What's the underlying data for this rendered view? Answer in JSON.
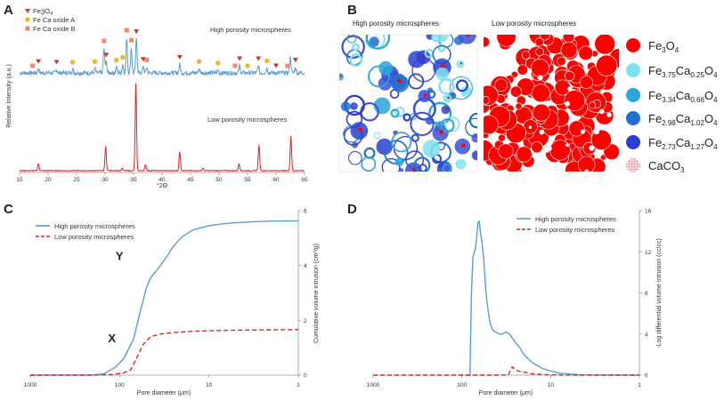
{
  "panels": {
    "A": "A",
    "B": "B",
    "C": "C",
    "D": "D"
  },
  "chart_data": [
    {
      "id": "A",
      "type": "line",
      "title": "",
      "xlabel": "°2Θ",
      "ylabel": "Relative Intensity (a.u.)",
      "xlim": [
        15,
        65
      ],
      "xticks": [
        15,
        20,
        25,
        30,
        35,
        40,
        45,
        50,
        55,
        60,
        65
      ],
      "legend": [
        {
          "name": "Fe3O4",
          "text": "Fe",
          "s1": "3",
          "mid": "O",
          "s2": "4",
          "marker": "triangle",
          "color": "#c0392b"
        },
        {
          "name": "Fe Ca oxide A",
          "text": "Fe Ca oxide A",
          "marker": "circle",
          "color": "#f0b429"
        },
        {
          "name": "Fe Ca oxide B",
          "text": "Fe Ca oxide B",
          "marker": "square",
          "color": "#f08a6c"
        }
      ],
      "series": [
        {
          "name": "High porosity microspheres",
          "color": "#5b9bd5",
          "baseline": 0.22,
          "peaks": [
            [
              18.3,
              0.06
            ],
            [
              21.5,
              0.05
            ],
            [
              24.3,
              0.05
            ],
            [
              28.2,
              0.06
            ],
            [
              29.8,
              0.35
            ],
            [
              30.2,
              0.15
            ],
            [
              32.0,
              0.08
            ],
            [
              33.1,
              0.12
            ],
            [
              33.8,
              0.5
            ],
            [
              34.6,
              0.36
            ],
            [
              35.5,
              0.48
            ],
            [
              36.7,
              0.09
            ],
            [
              37.3,
              0.08
            ],
            [
              43.1,
              0.12
            ],
            [
              46.5,
              0.06
            ],
            [
              49.8,
              0.04
            ],
            [
              53.6,
              0.1
            ],
            [
              56.9,
              0.1
            ],
            [
              58.4,
              0.07
            ],
            [
              62.5,
              0.22
            ],
            [
              63.4,
              0.08
            ]
          ]
        },
        {
          "name": "Low porosity microspheres",
          "color": "#e02020",
          "baseline": 0.0,
          "peaks": [
            [
              18.3,
              0.08
            ],
            [
              30.1,
              0.28
            ],
            [
              33.0,
              0.03
            ],
            [
              35.4,
              1.0
            ],
            [
              37.1,
              0.07
            ],
            [
              43.1,
              0.22
            ],
            [
              47.2,
              0.03
            ],
            [
              53.5,
              0.08
            ],
            [
              57.0,
              0.3
            ],
            [
              62.6,
              0.4
            ]
          ]
        }
      ],
      "annotations": {
        "high": "High porosity microspheres",
        "low": "Low porosity microspheres"
      },
      "markers": [
        {
          "type": "square",
          "x": 17.3
        },
        {
          "type": "triangle",
          "x": 18.3
        },
        {
          "type": "triangle",
          "x": 21.5
        },
        {
          "type": "circle",
          "x": 24.3
        },
        {
          "type": "circle",
          "x": 28.2
        },
        {
          "type": "square",
          "x": 29.8
        },
        {
          "type": "triangle",
          "x": 30.2
        },
        {
          "type": "circle",
          "x": 32.0
        },
        {
          "type": "circle",
          "x": 33.1
        },
        {
          "type": "square",
          "x": 33.8
        },
        {
          "type": "square",
          "x": 34.6
        },
        {
          "type": "triangle",
          "x": 35.5
        },
        {
          "type": "triangle",
          "x": 36.7
        },
        {
          "type": "square",
          "x": 37.3
        },
        {
          "type": "triangle",
          "x": 43.1
        },
        {
          "type": "circle",
          "x": 46.5
        },
        {
          "type": "circle",
          "x": 49.8
        },
        {
          "type": "triangle",
          "x": 53.6
        },
        {
          "type": "square",
          "x": 52.8
        },
        {
          "type": "circle",
          "x": 55.0
        },
        {
          "type": "triangle",
          "x": 56.9
        },
        {
          "type": "circle",
          "x": 58.4
        },
        {
          "type": "triangle",
          "x": 60.0
        },
        {
          "type": "square",
          "x": 62.0
        },
        {
          "type": "triangle",
          "x": 63.4
        }
      ]
    },
    {
      "id": "C",
      "type": "line",
      "xlabel": "Pore diameter (μm)",
      "ylabel": "Cumulative volume intrusion (cm³/g)",
      "xscale": "log-reversed",
      "xlim": [
        1000,
        1
      ],
      "ylim": [
        0,
        6
      ],
      "xticks": [
        1000,
        100,
        10,
        1
      ],
      "yticks": [
        0,
        2,
        4,
        6
      ],
      "series": [
        {
          "name": "High porosity microspheres",
          "color": "#5b9bd5",
          "dash": "",
          "x": [
            1000,
            200,
            150,
            110,
            90,
            70,
            60,
            50,
            45,
            40,
            35,
            30,
            25,
            20,
            15,
            10,
            7,
            5,
            3,
            2,
            1
          ],
          "y": [
            0,
            0,
            0.05,
            0.3,
            0.6,
            1.3,
            2.2,
            3.2,
            3.55,
            3.75,
            4.0,
            4.3,
            4.7,
            5.05,
            5.3,
            5.45,
            5.52,
            5.56,
            5.6,
            5.62,
            5.63
          ]
        },
        {
          "name": "Low porosity microspheres",
          "color": "#e02020",
          "dash": "5,3",
          "x": [
            1000,
            200,
            120,
            90,
            75,
            65,
            55,
            45,
            35,
            25,
            15,
            10,
            5,
            2,
            1
          ],
          "y": [
            0,
            0,
            0.02,
            0.08,
            0.2,
            0.6,
            1.1,
            1.4,
            1.5,
            1.55,
            1.6,
            1.62,
            1.64,
            1.65,
            1.66
          ]
        }
      ],
      "annotations": [
        {
          "text": "X",
          "x": 85,
          "y": 1.2
        },
        {
          "text": "Y",
          "x": 70,
          "y": 4.2
        }
      ]
    },
    {
      "id": "D",
      "type": "line",
      "xlabel": "Pore diameter (μm)",
      "ylabel": "-Log differential volume intrusion (cc/cc)",
      "xscale": "log-reversed",
      "xlim": [
        1000,
        1
      ],
      "ylim": [
        0,
        16
      ],
      "xticks": [
        1000,
        100,
        10,
        1
      ],
      "yticks": [
        0,
        4,
        8,
        12,
        16
      ],
      "series": [
        {
          "name": "High porosity microspheres",
          "color": "#5b9bd5",
          "dash": "",
          "x": [
            90,
            81,
            80,
            78,
            75,
            72,
            70,
            68,
            66,
            64,
            62,
            60,
            57,
            54,
            52,
            50,
            48,
            45,
            42,
            38,
            35,
            32,
            30,
            28,
            26,
            24,
            22,
            20,
            18,
            16,
            14,
            12,
            10,
            8,
            6,
            5,
            4,
            2,
            1
          ],
          "x_note": "baseline starts at 90",
          "y": [
            0,
            0,
            3.0,
            8.0,
            11.5,
            12.0,
            12.5,
            13.5,
            14.8,
            15.0,
            14.0,
            13.2,
            11.5,
            8.5,
            7.0,
            6.0,
            5.0,
            4.4,
            4.2,
            4.0,
            4.0,
            4.2,
            4.1,
            3.8,
            3.4,
            3.0,
            2.6,
            2.0,
            1.6,
            1.2,
            0.9,
            0.6,
            0.4,
            0.2,
            0.1,
            0.05,
            0.02,
            0,
            0
          ]
        },
        {
          "name": "Low porosity microspheres",
          "color": "#e02020",
          "dash": "5,3",
          "x": [
            1000,
            40,
            30,
            28,
            27,
            25,
            23,
            21,
            19,
            17,
            15,
            12,
            10,
            5,
            1
          ],
          "y": [
            0,
            0,
            0.02,
            0.6,
            0.8,
            0.5,
            0.4,
            0.3,
            0.25,
            0.15,
            0.1,
            0.05,
            0.02,
            0,
            0
          ]
        }
      ]
    }
  ],
  "panel_b": {
    "left_title": "High porosity microspheres",
    "right_title": "Low porosity microspheres",
    "legend": [
      {
        "name": "Fe3O4",
        "base": "Fe",
        "s1": "3",
        "mid": "O",
        "s2": "4",
        "color": "#ff0000"
      },
      {
        "name": "Fe3.75Ca0.25O4",
        "base": "Fe",
        "s1": "3.75",
        "mid": "Ca",
        "s2": "0.25",
        "end": "O",
        "s3": "4",
        "color": "#7fe0f0"
      },
      {
        "name": "Fe3.34Ca0.66O4",
        "base": "Fe",
        "s1": "3.34",
        "mid": "Ca",
        "s2": "0.66",
        "end": "O",
        "s3": "4",
        "color": "#2aa6d8"
      },
      {
        "name": "Fe2.98Ca1.02O4",
        "base": "Fe",
        "s1": "2.98",
        "mid": "Ca",
        "s2": "1.02",
        "end": "O",
        "s3": "4",
        "color": "#1e6fd0"
      },
      {
        "name": "Fe2.73Ca1.27O4",
        "base": "Fe",
        "s1": "2.73",
        "mid": "Ca",
        "s2": "1.27",
        "end": "O",
        "s3": "4",
        "color": "#2a3fcf"
      },
      {
        "name": "CaCO3",
        "base": "CaCO",
        "s1": "3",
        "color": "#f0a0a8"
      }
    ]
  }
}
